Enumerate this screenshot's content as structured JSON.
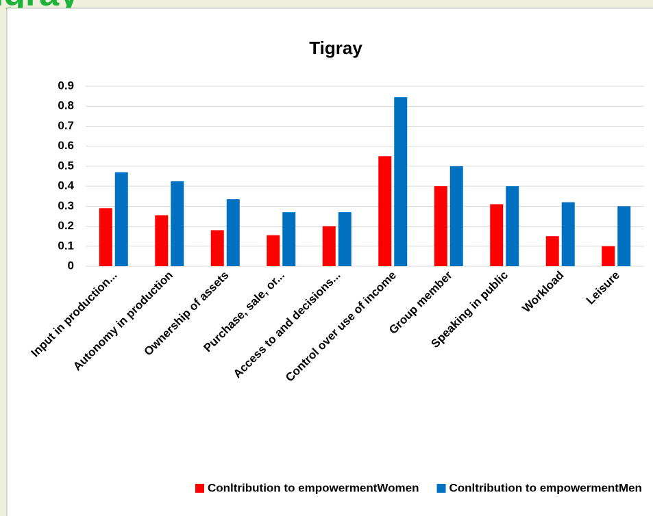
{
  "heading": "Tigray",
  "chart_data": {
    "type": "bar",
    "title": "Tigray",
    "categories": [
      "Input in production...",
      "Autonomy in production",
      "Ownership of assets",
      "Purchase, sale, or...",
      "Access to and decisions...",
      "Control over use of income",
      "Group member",
      "Speaking in public",
      "Workload",
      "Leisure"
    ],
    "series": [
      {
        "name": "Conltribution to empowermentWomen",
        "color": "#ff0000",
        "values": [
          0.29,
          0.255,
          0.18,
          0.155,
          0.2,
          0.55,
          0.4,
          0.31,
          0.15,
          0.1
        ]
      },
      {
        "name": "Conltribution to empowermentMen",
        "color": "#0070c0",
        "values": [
          0.47,
          0.425,
          0.335,
          0.27,
          0.27,
          0.845,
          0.5,
          0.4,
          0.32,
          0.3
        ]
      }
    ],
    "ylim": [
      0,
      0.9
    ],
    "yticks": [
      0,
      0.1,
      0.2,
      0.3,
      0.4,
      0.5,
      0.6,
      0.7,
      0.8,
      0.9
    ],
    "grid": true,
    "legend": "bottom"
  }
}
